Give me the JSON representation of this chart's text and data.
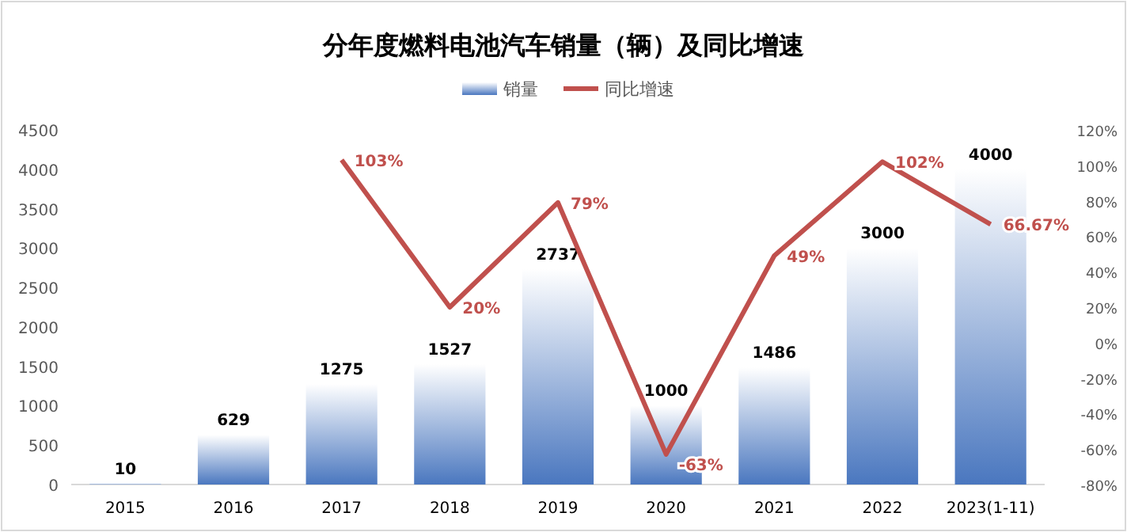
{
  "chart_data": {
    "type": "bar",
    "title": "分年度燃料电池汽车销量（辆）及同比增速",
    "categories": [
      "2015",
      "2016",
      "2017",
      "2018",
      "2019",
      "2020",
      "2021",
      "2022",
      "2023(1-11)"
    ],
    "series": [
      {
        "name": "销量",
        "color": "#4a77bf",
        "values": [
          10,
          629,
          1275,
          1527,
          2737,
          1000,
          1486,
          3000,
          4000
        ],
        "value_labels": [
          "10",
          "629",
          "1275",
          "1527",
          "2737",
          "1000",
          "1486",
          "3000",
          "4000"
        ]
      },
      {
        "name": "同比增速",
        "type": "line",
        "axis": "y2",
        "color": "#c0504d",
        "values": [
          null,
          null,
          103,
          20,
          79,
          -63,
          49,
          102,
          66.67
        ],
        "value_labels": [
          null,
          null,
          "103%",
          "20%",
          "79%",
          "-63%",
          "49%",
          "102%",
          "66.67%"
        ]
      }
    ],
    "ylim": [
      0,
      4500
    ],
    "yticks": [
      0,
      500,
      1000,
      1500,
      2000,
      2500,
      3000,
      3500,
      4000,
      4500
    ],
    "y2lim": [
      -80,
      120
    ],
    "y2ticks": [
      {
        "value": -80,
        "label": "-80%"
      },
      {
        "value": -60,
        "label": "-60%"
      },
      {
        "value": -40,
        "label": "-40%"
      },
      {
        "value": -20,
        "label": "-20%"
      },
      {
        "value": 0,
        "label": "0%"
      },
      {
        "value": 20,
        "label": "20%"
      },
      {
        "value": 40,
        "label": "40%"
      },
      {
        "value": 60,
        "label": "60%"
      },
      {
        "value": 80,
        "label": "80%"
      },
      {
        "value": 100,
        "label": "100%"
      },
      {
        "value": 120,
        "label": "120%"
      }
    ],
    "legend": "top"
  }
}
